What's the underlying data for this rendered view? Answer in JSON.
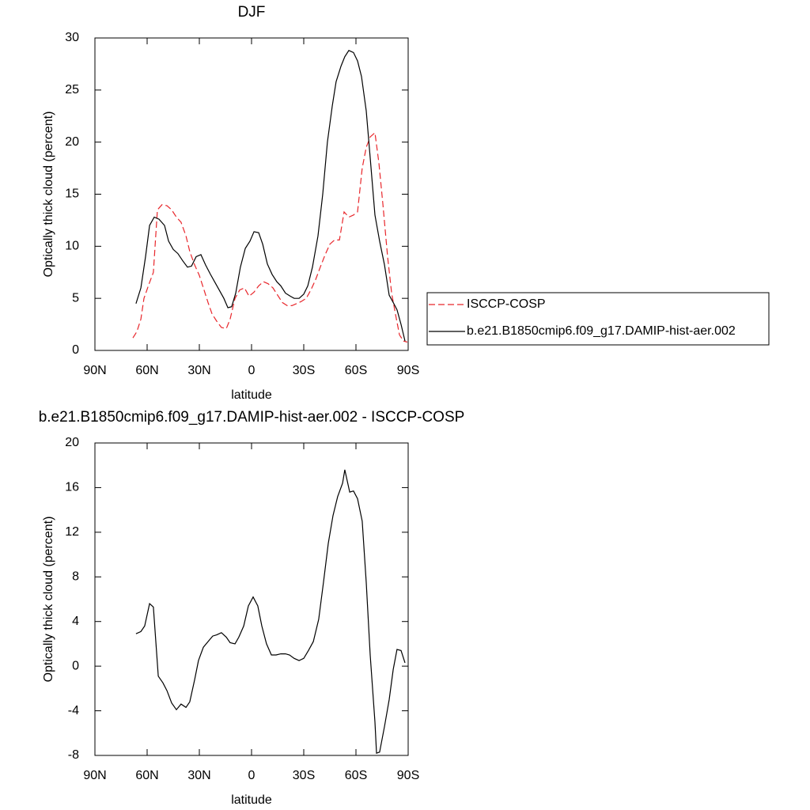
{
  "chart_data": [
    {
      "type": "line",
      "title": "DJF",
      "xlabel": "latitude",
      "ylabel": "Optically thick cloud (percent)",
      "xlim": [
        90,
        -90
      ],
      "xticks": [
        {
          "value": 90,
          "label": "90N"
        },
        {
          "value": 60,
          "label": "60N"
        },
        {
          "value": 30,
          "label": "30N"
        },
        0,
        {
          "value": -30,
          "label": "30S"
        },
        {
          "value": -60,
          "label": "60S"
        },
        {
          "value": -90,
          "label": "90S"
        }
      ],
      "ylim": [
        0,
        30
      ],
      "yticks": [
        0,
        5,
        10,
        15,
        20,
        25,
        30
      ],
      "series": [
        {
          "name": "ISCCP-COSP",
          "color": "#e8262b",
          "dash": true,
          "x": [
            68.2,
            65.9,
            63.6,
            61.8,
            59.1,
            56.4,
            54.1,
            51.4,
            48.6,
            45.9,
            43.2,
            40.5,
            37.7,
            35.5,
            32.7,
            30.0,
            27.7,
            25.0,
            22.7,
            20.0,
            17.3,
            14.5,
            12.3,
            9.5,
            6.8,
            4.1,
            1.4,
            -1.4,
            -4.1,
            -6.8,
            -9.5,
            -12.3,
            -15.0,
            -17.7,
            -20.5,
            -23.2,
            -25.9,
            -28.6,
            -31.4,
            -34.1,
            -36.8,
            -39.5,
            -42.3,
            -45.0,
            -47.7,
            -50.5,
            -53.2,
            -55.9,
            -58.6,
            -60.9,
            -63.6,
            -65.9,
            -68.2,
            -70.9,
            -73.2,
            -75.5,
            -78.2,
            -80.5,
            -82.7,
            -85.0,
            -87.3,
            -89.5
          ],
          "values": [
            1.2,
            1.8,
            3.0,
            5.0,
            6.3,
            7.5,
            13.5,
            14.0,
            13.9,
            13.5,
            12.8,
            12.3,
            11.0,
            9.5,
            8.2,
            7.2,
            6.0,
            4.6,
            3.5,
            2.8,
            2.2,
            2.1,
            3.0,
            5.0,
            5.8,
            6.0,
            5.2,
            5.6,
            6.2,
            6.6,
            6.4,
            6.0,
            5.3,
            4.6,
            4.3,
            4.3,
            4.5,
            4.7,
            5.0,
            5.8,
            6.8,
            8.0,
            9.2,
            10.2,
            10.6,
            10.6,
            13.3,
            12.8,
            13.0,
            13.3,
            17.5,
            19.5,
            20.5,
            20.9,
            18.0,
            14.0,
            9.0,
            5.5,
            3.5,
            1.5,
            0.9,
            0.8
          ]
        },
        {
          "name": "b.e21.B1850cmip6.f09_g17.DAMIP-hist-aer.002",
          "color": "#000000",
          "dash": false,
          "x": [
            66.4,
            63.6,
            60.9,
            58.6,
            55.9,
            53.2,
            50.0,
            47.7,
            45.0,
            42.3,
            39.5,
            36.8,
            34.5,
            31.8,
            29.1,
            26.4,
            23.6,
            20.9,
            18.6,
            15.9,
            13.6,
            11.4,
            9.1,
            6.4,
            3.6,
            0.9,
            -1.4,
            -4.1,
            -6.4,
            -9.1,
            -11.8,
            -14.5,
            -16.8,
            -19.5,
            -22.3,
            -24.5,
            -27.3,
            -30.0,
            -32.3,
            -35.0,
            -38.2,
            -40.9,
            -43.6,
            -46.4,
            -48.6,
            -51.4,
            -53.6,
            -55.9,
            -58.6,
            -60.9,
            -63.2,
            -65.9,
            -68.2,
            -70.9,
            -73.6,
            -76.4,
            -79.1,
            -81.4,
            -83.6,
            -85.9,
            -88.2
          ],
          "values": [
            4.5,
            6.0,
            9.0,
            12.0,
            12.8,
            12.6,
            12.0,
            10.5,
            9.7,
            9.3,
            8.6,
            8.0,
            8.1,
            9.0,
            9.2,
            8.2,
            7.3,
            6.5,
            5.8,
            5.0,
            4.1,
            4.2,
            5.5,
            8.0,
            9.8,
            10.5,
            11.4,
            11.3,
            10.2,
            8.3,
            7.3,
            6.6,
            6.2,
            5.5,
            5.2,
            5.0,
            5.0,
            5.4,
            6.2,
            8.0,
            11.0,
            15.0,
            20.0,
            23.5,
            25.8,
            27.3,
            28.2,
            28.8,
            28.6,
            27.8,
            26.3,
            23.0,
            18.5,
            13.0,
            10.5,
            8.2,
            5.3,
            4.6,
            3.9,
            2.5,
            0.9
          ]
        }
      ]
    },
    {
      "type": "line",
      "title": "b.e21.B1850cmip6.f09_g17.DAMIP-hist-aer.002 - ISCCP-COSP",
      "xlabel": "latitude",
      "ylabel": "Optically thick cloud (percent)",
      "xlim": [
        90,
        -90
      ],
      "xticks": [
        {
          "value": 90,
          "label": "90N"
        },
        {
          "value": 60,
          "label": "60N"
        },
        {
          "value": 30,
          "label": "30N"
        },
        0,
        {
          "value": -30,
          "label": "30S"
        },
        {
          "value": -60,
          "label": "60S"
        },
        {
          "value": -90,
          "label": "90S"
        }
      ],
      "ylim": [
        -8,
        20
      ],
      "yticks": [
        -8,
        -4,
        0,
        4,
        8,
        12,
        16,
        20
      ],
      "series": [
        {
          "color": "#000000",
          "dash": false,
          "x": [
            66.4,
            63.6,
            61.4,
            58.6,
            56.4,
            53.6,
            50.9,
            48.6,
            45.9,
            43.2,
            40.5,
            37.7,
            35.5,
            32.7,
            30.5,
            27.7,
            25.0,
            22.3,
            20.0,
            17.3,
            14.5,
            12.3,
            9.5,
            7.3,
            4.5,
            1.8,
            -0.9,
            -3.6,
            -5.9,
            -8.6,
            -11.4,
            -14.1,
            -16.8,
            -19.5,
            -21.8,
            -24.5,
            -27.3,
            -30.0,
            -32.7,
            -35.5,
            -38.6,
            -41.4,
            -44.1,
            -46.8,
            -49.5,
            -52.3,
            -53.6,
            -56.4,
            -58.6,
            -60.9,
            -63.6,
            -65.9,
            -68.2,
            -70.9,
            -71.8,
            -73.6,
            -76.4,
            -79.1,
            -81.4,
            -83.6,
            -85.9,
            -88.2
          ],
          "values": [
            2.9,
            3.1,
            3.6,
            5.6,
            5.3,
            -0.9,
            -1.5,
            -2.2,
            -3.3,
            -3.9,
            -3.4,
            -3.7,
            -3.2,
            -1.2,
            0.5,
            1.7,
            2.2,
            2.7,
            2.8,
            3.0,
            2.6,
            2.1,
            2.0,
            2.6,
            3.6,
            5.4,
            6.2,
            5.4,
            3.6,
            2.0,
            1.0,
            1.0,
            1.1,
            1.1,
            1.0,
            0.7,
            0.5,
            0.7,
            1.4,
            2.2,
            4.2,
            7.6,
            11.0,
            13.5,
            15.2,
            16.4,
            17.6,
            15.6,
            15.7,
            15.0,
            13.0,
            7.5,
            1.0,
            -5.0,
            -7.8,
            -7.7,
            -5.4,
            -3.0,
            -0.3,
            1.5,
            1.4,
            0.3
          ]
        }
      ]
    }
  ]
}
